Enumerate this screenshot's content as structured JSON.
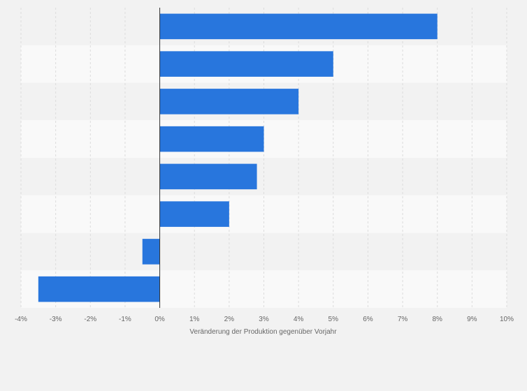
{
  "chart_data": {
    "type": "bar",
    "orientation": "horizontal",
    "title": "",
    "xlabel": "Veränderung der Produktion gegenüber Vorjahr",
    "ylabel": "",
    "xlim": [
      -4,
      10
    ],
    "x_ticks": [
      -4,
      -3,
      -2,
      -1,
      0,
      1,
      2,
      3,
      4,
      5,
      6,
      7,
      8,
      9,
      10
    ],
    "x_tick_labels": [
      "-4%",
      "-3%",
      "-2%",
      "-1%",
      "0%",
      "1%",
      "2%",
      "3%",
      "4%",
      "5%",
      "6%",
      "7%",
      "8%",
      "9%",
      "10%"
    ],
    "categories": [
      "",
      "",
      "",
      "",
      "",
      "",
      "",
      ""
    ],
    "values": [
      8.0,
      5.0,
      4.0,
      3.0,
      2.8,
      2.0,
      -0.5,
      -3.5
    ],
    "grid": true,
    "colors": {
      "bar": "#2876dd",
      "page_background": "#f2f2f2",
      "band_light": "#f9f9f9",
      "band_dark": "#f2f2f2",
      "gridline": "#dcdcdc",
      "zero_line": "#333333"
    }
  }
}
